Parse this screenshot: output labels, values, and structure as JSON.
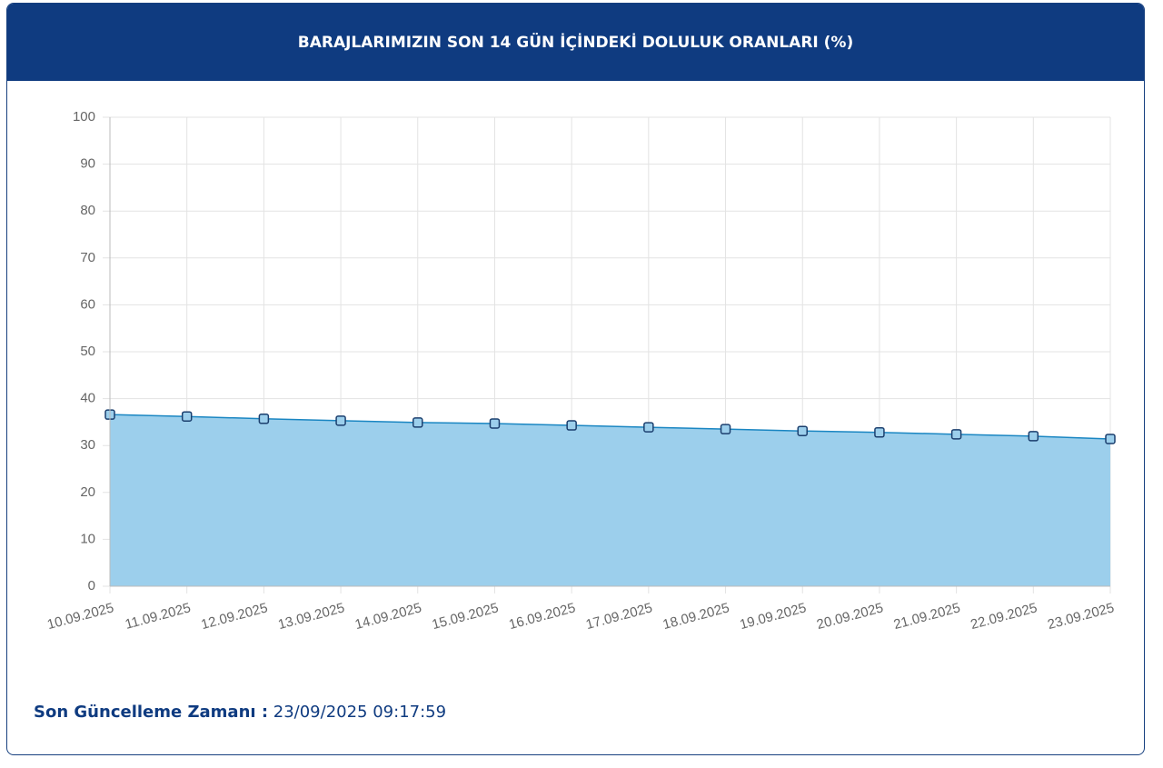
{
  "chart_data": {
    "type": "area",
    "title": "BARAJLARIMIZIN SON 14 GÜN İÇİNDEKİ DOLULUK ORANLARI (%)",
    "categories": [
      "10.09.2025",
      "11.09.2025",
      "12.09.2025",
      "13.09.2025",
      "14.09.2025",
      "15.09.2025",
      "16.09.2025",
      "17.09.2025",
      "18.09.2025",
      "19.09.2025",
      "20.09.2025",
      "21.09.2025",
      "22.09.2025",
      "23.09.2025"
    ],
    "values": [
      36.6,
      36.2,
      35.7,
      35.3,
      34.9,
      34.7,
      34.3,
      33.9,
      33.5,
      33.1,
      32.8,
      32.4,
      32.0,
      31.4
    ],
    "color": "#1a86c2",
    "fill_color": "#9ccfec",
    "ylim": [
      0,
      100
    ],
    "yticks": [
      0,
      10,
      20,
      30,
      40,
      50,
      60,
      70,
      80,
      90,
      100
    ],
    "grid": true
  },
  "footer": {
    "label": "Son Güncelleme Zamanı :",
    "value": "23/09/2025 09:17:59"
  }
}
